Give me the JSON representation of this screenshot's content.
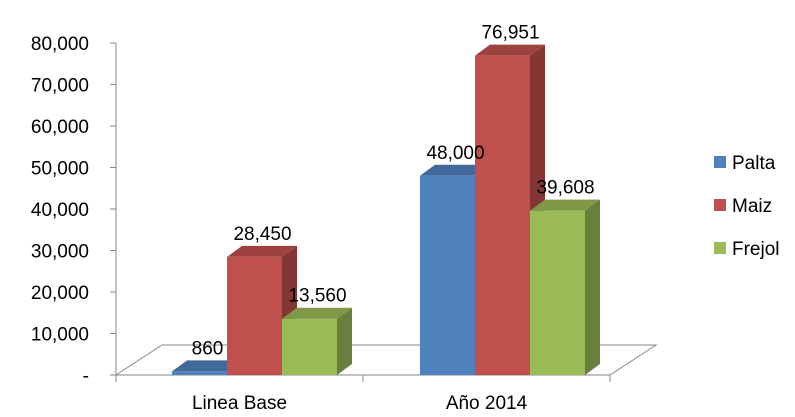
{
  "chart_data": {
    "type": "bar",
    "title": "",
    "xlabel": "",
    "ylabel": "",
    "categories": [
      "Linea Base",
      "Año 2014"
    ],
    "series": [
      {
        "name": "Palta",
        "values": [
          860,
          48000
        ],
        "labels": [
          "860",
          "48,000"
        ],
        "color": "#4F81BD"
      },
      {
        "name": "Maiz",
        "values": [
          28450,
          76951
        ],
        "labels": [
          "28,450",
          "76,951"
        ],
        "color": "#C0504D"
      },
      {
        "name": "Frejol",
        "values": [
          13560,
          39608
        ],
        "labels": [
          "13,560",
          "39,608"
        ],
        "color": "#9BBB59"
      }
    ],
    "ylim": [
      0,
      80000
    ],
    "yticks": [
      0,
      10000,
      20000,
      30000,
      40000,
      50000,
      60000,
      70000,
      80000
    ],
    "ytick_labels": [
      "-",
      "10,000",
      "20,000",
      "30,000",
      "40,000",
      "50,000",
      "60,000",
      "70,000",
      "80,000"
    ],
    "legend": "right",
    "grid": false,
    "style": "3d-clustered-column"
  }
}
